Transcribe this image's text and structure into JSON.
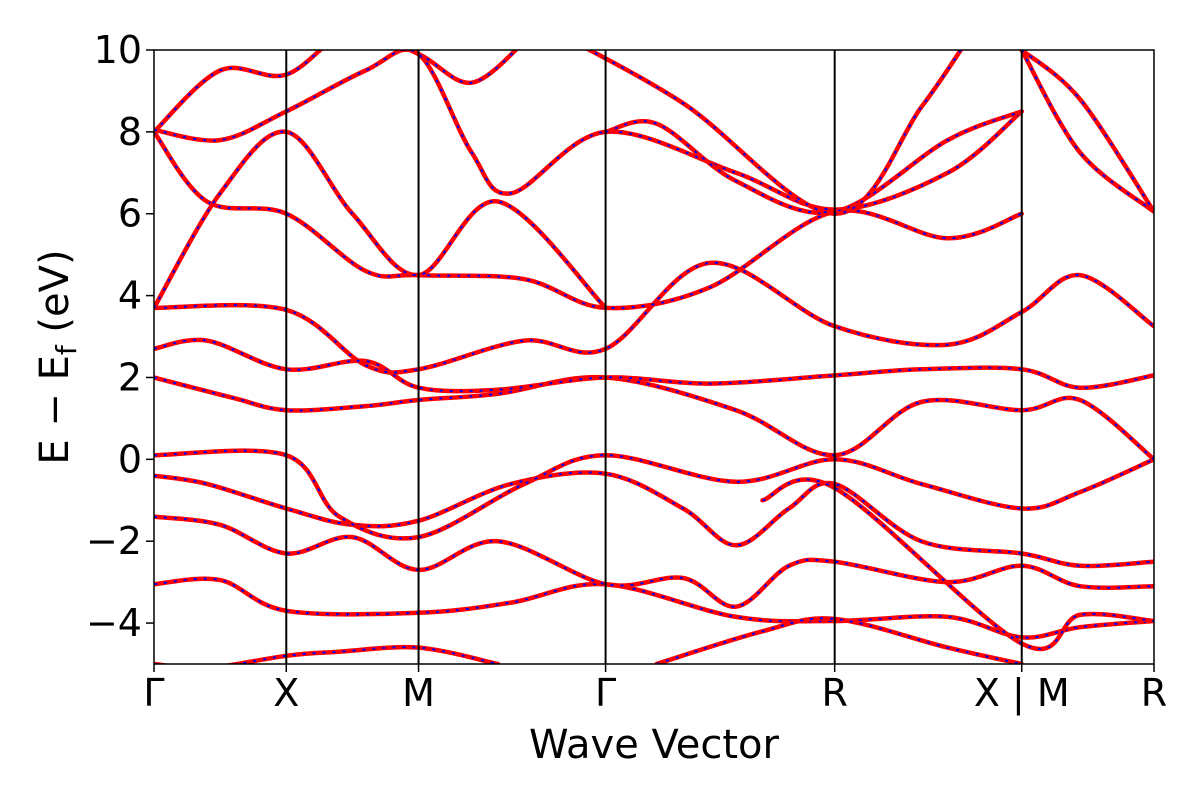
{
  "chart_data": {
    "type": "line",
    "xlabel": "Wave Vector",
    "ylabel_main": "E − E",
    "ylabel_sub": "f",
    "ylabel_unit": " (eV)",
    "ylim": [
      -5,
      10
    ],
    "yticks": [
      -4,
      -2,
      0,
      2,
      4,
      6,
      8,
      10
    ],
    "ytick_labels": [
      "−4",
      "−2",
      "0",
      "2",
      "4",
      "6",
      "8",
      "10"
    ],
    "kpoints": [
      {
        "label": "Γ",
        "x": 0.0
      },
      {
        "label": "X",
        "x": 0.5
      },
      {
        "label": "M",
        "x": 1.0
      },
      {
        "label": "Γ",
        "x": 1.707
      },
      {
        "label": "R",
        "x": 2.573
      },
      {
        "label": "X | M",
        "x": 3.28
      },
      {
        "label": "R",
        "x": 3.78
      }
    ],
    "xlim": [
      0,
      3.78
    ],
    "series_colors": {
      "solid": "#ff0000",
      "dashed": "#0000ff"
    },
    "grid": false,
    "bands": [
      [
        [
          0.0,
          -5.0
        ],
        [
          0.2,
          -5.1
        ],
        [
          0.5,
          -4.8
        ],
        [
          0.7,
          -4.7
        ],
        [
          1.0,
          -4.6
        ],
        [
          1.3,
          -5.0
        ]
      ],
      [
        [
          0.0,
          -3.05
        ],
        [
          0.25,
          -2.95
        ],
        [
          0.5,
          -3.7
        ],
        [
          1.0,
          -3.75
        ],
        [
          1.35,
          -3.5
        ],
        [
          1.707,
          -3.05
        ],
        [
          2.2,
          -3.85
        ],
        [
          2.573,
          -3.95
        ],
        [
          3.0,
          -3.85
        ],
        [
          3.28,
          -4.35
        ],
        [
          3.5,
          -4.1
        ],
        [
          3.78,
          -3.95
        ]
      ],
      [
        [
          0.0,
          -1.4
        ],
        [
          0.25,
          -1.6
        ],
        [
          0.5,
          -2.3
        ],
        [
          0.75,
          -1.9
        ],
        [
          1.0,
          -2.7
        ],
        [
          1.3,
          -2.0
        ],
        [
          1.707,
          -3.05
        ],
        [
          2.0,
          -2.9
        ],
        [
          2.2,
          -3.6
        ],
        [
          2.4,
          -2.6
        ],
        [
          2.573,
          -2.5
        ],
        [
          3.0,
          -3.0
        ],
        [
          3.28,
          -2.6
        ],
        [
          3.5,
          -3.1
        ],
        [
          3.78,
          -3.1
        ]
      ],
      [
        [
          0.0,
          -0.4
        ],
        [
          0.2,
          -0.6
        ],
        [
          0.5,
          -1.2
        ],
        [
          0.75,
          -1.6
        ],
        [
          1.0,
          -1.5
        ],
        [
          1.35,
          -0.6
        ],
        [
          1.707,
          -0.35
        ],
        [
          2.0,
          -1.2
        ],
        [
          2.2,
          -2.1
        ],
        [
          2.4,
          -1.2
        ],
        [
          2.573,
          -0.6
        ],
        [
          2.9,
          -2.0
        ],
        [
          3.28,
          -2.3
        ],
        [
          3.5,
          -2.6
        ],
        [
          3.78,
          -2.5
        ]
      ],
      [
        [
          0.0,
          0.1
        ],
        [
          0.5,
          0.1
        ],
        [
          0.7,
          -1.4
        ],
        [
          1.0,
          -1.9
        ],
        [
          1.4,
          -0.6
        ],
        [
          1.707,
          0.1
        ],
        [
          2.2,
          -0.55
        ],
        [
          2.573,
          0.0
        ],
        [
          2.9,
          -0.6
        ],
        [
          3.28,
          -1.2
        ],
        [
          3.5,
          -0.8
        ],
        [
          3.78,
          0.0
        ]
      ],
      [
        [
          0.0,
          2.0
        ],
        [
          0.3,
          1.5
        ],
        [
          0.5,
          1.2
        ],
        [
          0.8,
          1.3
        ],
        [
          1.0,
          1.45
        ],
        [
          1.3,
          1.6
        ],
        [
          1.707,
          2.0
        ],
        [
          2.2,
          1.2
        ],
        [
          2.573,
          0.1
        ],
        [
          2.9,
          1.4
        ],
        [
          3.28,
          1.2
        ],
        [
          3.5,
          1.45
        ],
        [
          3.78,
          0.0
        ]
      ],
      [
        [
          0.0,
          2.7
        ],
        [
          0.2,
          2.9
        ],
        [
          0.5,
          2.2
        ],
        [
          0.8,
          2.4
        ],
        [
          1.0,
          1.75
        ],
        [
          1.3,
          1.7
        ],
        [
          1.707,
          2.0
        ],
        [
          2.1,
          1.85
        ],
        [
          2.573,
          2.05
        ],
        [
          2.9,
          2.2
        ],
        [
          3.28,
          2.2
        ],
        [
          3.5,
          1.75
        ],
        [
          3.78,
          2.05
        ]
      ],
      [
        [
          0.0,
          3.7
        ],
        [
          0.5,
          3.65
        ],
        [
          0.8,
          2.3
        ],
        [
          1.0,
          2.2
        ],
        [
          1.4,
          2.9
        ],
        [
          1.707,
          2.7
        ],
        [
          2.1,
          4.8
        ],
        [
          2.573,
          3.25
        ],
        [
          3.0,
          2.8
        ],
        [
          3.28,
          3.6
        ],
        [
          3.5,
          4.5
        ],
        [
          3.78,
          3.25
        ]
      ],
      [
        [
          0.0,
          8.0
        ],
        [
          0.2,
          6.3
        ],
        [
          0.5,
          6.0
        ],
        [
          0.8,
          4.6
        ],
        [
          1.0,
          4.5
        ],
        [
          1.4,
          4.4
        ],
        [
          1.707,
          3.7
        ],
        [
          2.1,
          4.2
        ],
        [
          2.573,
          6.05
        ],
        [
          3.0,
          5.4
        ],
        [
          3.28,
          6.0
        ]
      ],
      [
        [
          0.0,
          3.7
        ],
        [
          0.25,
          6.5
        ],
        [
          0.5,
          8.0
        ],
        [
          0.75,
          6.0
        ],
        [
          1.0,
          4.5
        ],
        [
          1.3,
          6.3
        ],
        [
          1.707,
          3.7
        ]
      ],
      [
        [
          0.0,
          8.0
        ],
        [
          0.25,
          9.5
        ],
        [
          0.5,
          9.4
        ],
        [
          0.75,
          10.5
        ],
        [
          1.0,
          9.9
        ],
        [
          1.2,
          9.2
        ],
        [
          1.4,
          10.2
        ]
      ],
      [
        [
          0.0,
          8.05
        ],
        [
          0.25,
          7.8
        ],
        [
          0.5,
          8.5
        ],
        [
          0.8,
          9.5
        ],
        [
          1.0,
          9.9
        ],
        [
          1.2,
          7.5
        ],
        [
          1.35,
          6.5
        ],
        [
          1.707,
          8.0
        ],
        [
          2.2,
          7.0
        ],
        [
          2.573,
          6.1
        ],
        [
          3.0,
          7.0
        ],
        [
          3.28,
          8.5
        ]
      ],
      [
        [
          1.707,
          8.0
        ],
        [
          1.9,
          8.2
        ],
        [
          2.2,
          6.8
        ],
        [
          2.573,
          6.05
        ],
        [
          3.0,
          7.8
        ],
        [
          3.28,
          8.5
        ]
      ],
      [
        [
          1.5,
          10.5
        ],
        [
          2.0,
          8.7
        ],
        [
          2.573,
          6.0
        ],
        [
          2.9,
          8.6
        ],
        [
          3.1,
          10.5
        ]
      ],
      [
        [
          2.3,
          -1.0
        ],
        [
          2.573,
          -0.7
        ],
        [
          3.28,
          -4.5
        ],
        [
          3.5,
          -3.8
        ],
        [
          3.78,
          -3.95
        ]
      ],
      [
        [
          1.9,
          -5.0
        ],
        [
          2.3,
          -4.2
        ],
        [
          2.573,
          -3.9
        ],
        [
          3.0,
          -4.6
        ],
        [
          3.28,
          -5.0
        ]
      ],
      [
        [
          3.28,
          10.0
        ],
        [
          3.5,
          7.5
        ],
        [
          3.78,
          6.05
        ]
      ],
      [
        [
          3.28,
          10.0
        ],
        [
          3.5,
          8.8
        ],
        [
          3.78,
          6.05
        ]
      ]
    ]
  }
}
